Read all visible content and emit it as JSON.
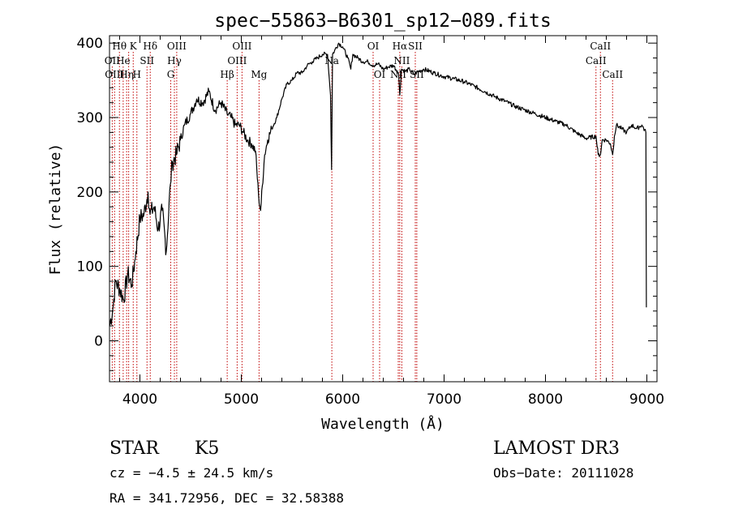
{
  "chart_data": {
    "type": "line",
    "title": "spec−55863−B6301_sp12−089.fits",
    "xlabel": "Wavelength (Å)",
    "ylabel": "Flux (relative)",
    "xlim": [
      3700,
      9100
    ],
    "ylim": [
      -55,
      410
    ],
    "x_ticks": [
      4000,
      5000,
      6000,
      7000,
      8000,
      9000
    ],
    "y_ticks": [
      0,
      100,
      200,
      300,
      400
    ],
    "series": [
      {
        "name": "Flux",
        "x": [
          3700,
          3730,
          3760,
          3800,
          3840,
          3880,
          3920,
          3960,
          4000,
          4040,
          4080,
          4100,
          4140,
          4180,
          4220,
          4260,
          4300,
          4320,
          4360,
          4400,
          4440,
          4500,
          4560,
          4620,
          4680,
          4740,
          4800,
          4860,
          4900,
          4940,
          4980,
          5020,
          5060,
          5100,
          5140,
          5170,
          5190,
          5230,
          5260,
          5300,
          5350,
          5400,
          5450,
          5500,
          5550,
          5600,
          5650,
          5700,
          5750,
          5800,
          5850,
          5880,
          5890,
          5900,
          5920,
          5960,
          6000,
          6050,
          6080,
          6100,
          6150,
          6200,
          6250,
          6300,
          6350,
          6400,
          6450,
          6500,
          6550,
          6563,
          6580,
          6620,
          6660,
          6700,
          6750,
          6800,
          6900,
          7000,
          7100,
          7200,
          7300,
          7400,
          7500,
          7600,
          7700,
          7800,
          7900,
          8000,
          8100,
          8200,
          8300,
          8400,
          8498,
          8520,
          8542,
          8560,
          8600,
          8640,
          8662,
          8680,
          8700,
          8750,
          8800,
          8850,
          8900,
          8950,
          8990,
          8995
        ],
        "values": [
          20,
          40,
          80,
          70,
          55,
          90,
          75,
          120,
          165,
          170,
          200,
          170,
          180,
          150,
          175,
          120,
          210,
          240,
          250,
          270,
          290,
          305,
          325,
          320,
          335,
          310,
          320,
          305,
          300,
          290,
          290,
          280,
          270,
          265,
          255,
          195,
          175,
          250,
          270,
          285,
          300,
          325,
          345,
          350,
          360,
          360,
          370,
          375,
          380,
          385,
          385,
          330,
          230,
          385,
          390,
          400,
          395,
          380,
          365,
          385,
          380,
          375,
          375,
          370,
          372,
          365,
          368,
          370,
          360,
          330,
          365,
          362,
          365,
          358,
          362,
          365,
          360,
          355,
          352,
          348,
          342,
          335,
          328,
          322,
          315,
          310,
          305,
          300,
          295,
          290,
          280,
          272,
          275,
          250,
          250,
          270,
          270,
          265,
          250,
          275,
          290,
          285,
          280,
          290,
          285,
          290,
          280,
          45
        ]
      }
    ],
    "line_markers": [
      {
        "wavelength": 3727,
        "label": "OII",
        "row": 1
      },
      {
        "wavelength": 3750,
        "label": "OIII",
        "row": 2
      },
      {
        "wavelength": 3798,
        "label": "Hθ",
        "row": 0
      },
      {
        "wavelength": 3835,
        "label": "He",
        "row": 1
      },
      {
        "wavelength": 3869,
        "label": "Hη",
        "row": 2
      },
      {
        "wavelength": 3889,
        "label": "",
        "row": 0
      },
      {
        "wavelength": 3934,
        "label": "K",
        "row": 0
      },
      {
        "wavelength": 3970,
        "label": "H",
        "row": 2
      },
      {
        "wavelength": 4070,
        "label": "SII",
        "row": 1
      },
      {
        "wavelength": 4102,
        "label": "Hδ",
        "row": 0
      },
      {
        "wavelength": 4304,
        "label": "G",
        "row": 2
      },
      {
        "wavelength": 4340,
        "label": "Hγ",
        "row": 1
      },
      {
        "wavelength": 4363,
        "label": "OIII",
        "row": 0
      },
      {
        "wavelength": 4861,
        "label": "Hβ",
        "row": 2
      },
      {
        "wavelength": 4959,
        "label": "OIII",
        "row": 1
      },
      {
        "wavelength": 5007,
        "label": "OIII",
        "row": 0
      },
      {
        "wavelength": 5175,
        "label": "Mg",
        "row": 2
      },
      {
        "wavelength": 5893,
        "label": "Na",
        "row": 1
      },
      {
        "wavelength": 6300,
        "label": "OI",
        "row": 0
      },
      {
        "wavelength": 6364,
        "label": "OI",
        "row": 2
      },
      {
        "wavelength": 6548,
        "label": "NII",
        "row": 2
      },
      {
        "wavelength": 6563,
        "label": "Hα",
        "row": 0
      },
      {
        "wavelength": 6583,
        "label": "NII",
        "row": 1
      },
      {
        "wavelength": 6716,
        "label": "SII",
        "row": 0
      },
      {
        "wavelength": 6731,
        "label": "SII",
        "row": 2
      },
      {
        "wavelength": 8498,
        "label": "CaII",
        "row": 1
      },
      {
        "wavelength": 8542,
        "label": "CaII",
        "row": 0
      },
      {
        "wavelength": 8662,
        "label": "CaII",
        "row": 2
      }
    ]
  },
  "info": {
    "class": "STAR",
    "subclass": "K5",
    "survey": "LAMOST DR3",
    "redshift": "cz = −4.5 ± 24.5 km/s",
    "obs_date": "Obs−Date: 20111028",
    "coords": "RA = 341.72956, DEC =  32.58388"
  },
  "colors": {
    "spectrum": "#000000",
    "marker": "#c00000",
    "axis": "#000000"
  }
}
